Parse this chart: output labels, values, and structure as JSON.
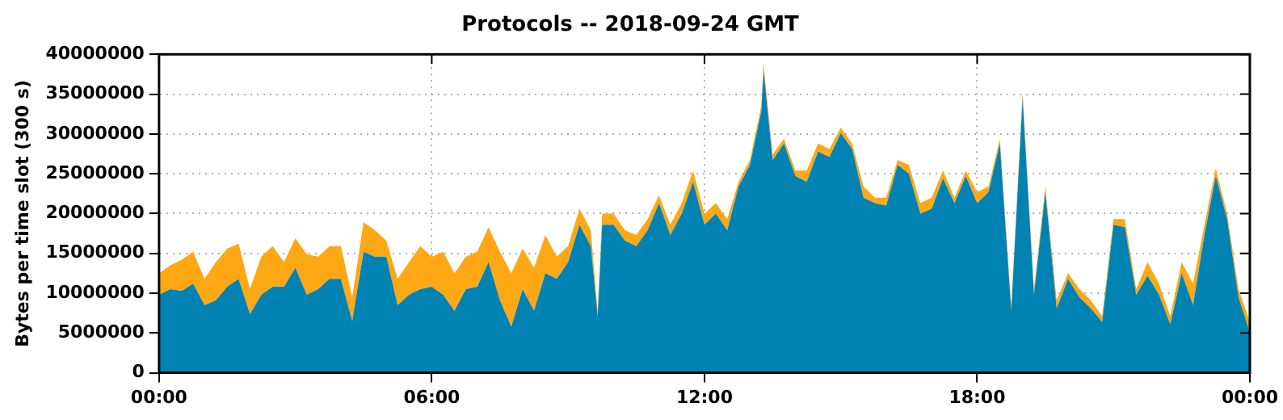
{
  "chart_data": {
    "type": "area",
    "stacked": true,
    "title": "Protocols -- 2018-09-24 GMT",
    "ylabel": "Bytes per time slot (300 s)",
    "x": [
      0,
      0.25,
      0.5,
      0.75,
      1,
      1.25,
      1.5,
      1.75,
      2,
      2.25,
      2.5,
      2.75,
      3,
      3.25,
      3.5,
      3.75,
      4,
      4.25,
      4.5,
      4.75,
      5,
      5.25,
      5.5,
      5.75,
      6,
      6.25,
      6.5,
      6.75,
      7,
      7.25,
      7.5,
      7.75,
      8,
      8.25,
      8.5,
      8.75,
      9,
      9.25,
      9.5,
      9.65,
      9.75,
      10,
      10.25,
      10.5,
      10.75,
      11,
      11.25,
      11.5,
      11.75,
      12,
      12.25,
      12.5,
      12.75,
      13,
      13.25,
      13.3,
      13.5,
      13.75,
      14,
      14.25,
      14.5,
      14.75,
      15,
      15.25,
      15.5,
      15.75,
      16,
      16.25,
      16.5,
      16.75,
      17,
      17.25,
      17.5,
      17.75,
      18,
      18.25,
      18.5,
      18.75,
      19,
      19.25,
      19.5,
      19.75,
      20,
      20.25,
      20.5,
      20.75,
      21,
      21.25,
      21.5,
      21.75,
      22,
      22.25,
      22.5,
      22.75,
      23,
      23.25,
      23.5,
      23.75,
      24
    ],
    "series": [
      {
        "color": "#0083b3",
        "values": [
          9800000,
          10500000,
          10300000,
          11200000,
          8500000,
          9100000,
          10800000,
          11800000,
          7400000,
          9800000,
          10800000,
          10800000,
          13200000,
          9800000,
          10500000,
          11800000,
          11800000,
          6500000,
          15200000,
          14600000,
          14600000,
          8500000,
          9800000,
          10500000,
          10800000,
          9800000,
          7800000,
          10500000,
          10800000,
          13900000,
          9100000,
          5800000,
          10500000,
          7800000,
          12500000,
          11800000,
          13900000,
          18600000,
          15900000,
          7100000,
          18600000,
          18600000,
          16600000,
          15900000,
          17900000,
          21300000,
          17300000,
          20000000,
          24000000,
          18600000,
          20000000,
          17900000,
          23400000,
          26100000,
          32800000,
          38000000,
          26700000,
          28800000,
          24700000,
          24000000,
          27800000,
          27100000,
          30100000,
          28100000,
          22000000,
          21300000,
          21000000,
          26100000,
          25000000,
          20000000,
          20600000,
          24400000,
          21300000,
          24700000,
          21300000,
          22700000,
          28800000,
          7800000,
          34500000,
          9800000,
          22700000,
          8100000,
          11800000,
          9500000,
          8100000,
          6400000,
          18600000,
          18300000,
          9800000,
          12200000,
          9800000,
          6100000,
          12500000,
          8500000,
          17300000,
          24700000,
          19300000,
          9500000,
          5100000
        ]
      },
      {
        "color": "#ffa814",
        "values": [
          2700000,
          3000000,
          3900000,
          4000000,
          3300000,
          4800000,
          4800000,
          4400000,
          3100000,
          4800000,
          5100000,
          3100000,
          3700000,
          5100000,
          4100000,
          4100000,
          4100000,
          3000000,
          3700000,
          3300000,
          2000000,
          3300000,
          4100000,
          5400000,
          3800000,
          5400000,
          4700000,
          4100000,
          4400000,
          4400000,
          6100000,
          6700000,
          5100000,
          5400000,
          4800000,
          2800000,
          2000000,
          2000000,
          2000000,
          700000,
          1400000,
          1400000,
          1300000,
          1400000,
          1400000,
          1000000,
          1300000,
          1300000,
          1400000,
          1400000,
          1300000,
          1400000,
          600000,
          600000,
          700000,
          900000,
          700000,
          600000,
          700000,
          1400000,
          1000000,
          1000000,
          700000,
          700000,
          1400000,
          700000,
          1000000,
          600000,
          1100000,
          1300000,
          1400000,
          1000000,
          700000,
          700000,
          1400000,
          700000,
          600000,
          700000,
          700000,
          700000,
          700000,
          1000000,
          700000,
          1000000,
          1000000,
          700000,
          700000,
          1000000,
          700000,
          1700000,
          1400000,
          1000000,
          1400000,
          2700000,
          1300000,
          1000000,
          700000,
          1000000,
          1300000
        ]
      }
    ],
    "xlim": [
      0,
      24
    ],
    "xticks": [
      {
        "value": 0,
        "label": "00:00"
      },
      {
        "value": 6,
        "label": "06:00"
      },
      {
        "value": 12,
        "label": "12:00"
      },
      {
        "value": 18,
        "label": "18:00"
      },
      {
        "value": 24,
        "label": "00:00"
      }
    ],
    "ylim": [
      0,
      40000000
    ],
    "yticks": [
      0,
      5000000,
      10000000,
      15000000,
      20000000,
      25000000,
      30000000,
      35000000,
      40000000
    ],
    "grid": true,
    "legend": false
  }
}
